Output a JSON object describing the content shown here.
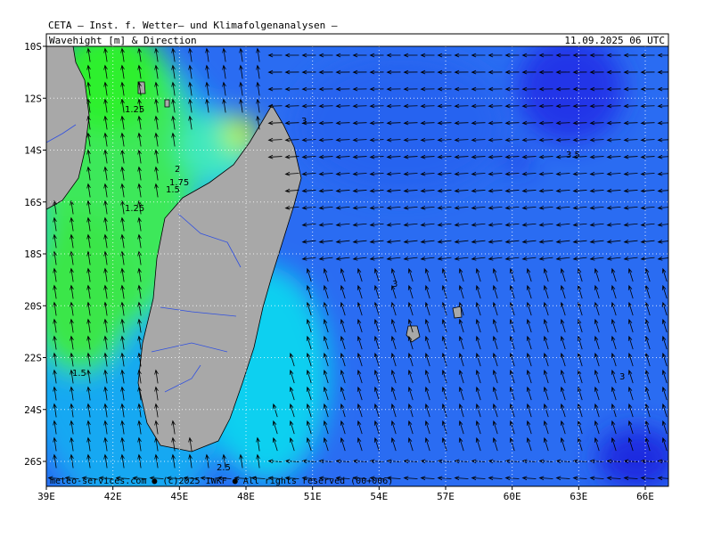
{
  "header": {
    "title": "CETA – Inst. f. Wetter– und Klimafolgenanalysen –",
    "subtitle": "Wavehight [m] & Direction",
    "valid_time": "11.09.2025 06 UTC"
  },
  "map": {
    "lon_ticks": [
      {
        "value": 39,
        "label": "39E"
      },
      {
        "value": 42,
        "label": "42E"
      },
      {
        "value": 45,
        "label": "45E"
      },
      {
        "value": 48,
        "label": "48E"
      },
      {
        "value": 51,
        "label": "51E"
      },
      {
        "value": 54,
        "label": "54E"
      },
      {
        "value": 57,
        "label": "57E"
      },
      {
        "value": 60,
        "label": "60E"
      },
      {
        "value": 63,
        "label": "63E"
      },
      {
        "value": 66,
        "label": "66E"
      }
    ],
    "lat_ticks": [
      {
        "value": -10,
        "label": "10S"
      },
      {
        "value": -12,
        "label": "12S"
      },
      {
        "value": -14,
        "label": "14S"
      },
      {
        "value": -16,
        "label": "16S"
      },
      {
        "value": -18,
        "label": "18S"
      },
      {
        "value": -20,
        "label": "20S"
      },
      {
        "value": -22,
        "label": "22S"
      },
      {
        "value": -24,
        "label": "24S"
      },
      {
        "value": -26,
        "label": "26S"
      }
    ],
    "contour_labels": [
      "3",
      "1.25",
      "2",
      "1.75",
      "1.5",
      "1.25",
      "3.5",
      "3",
      "1.5",
      "3",
      "2.5"
    ]
  },
  "footer": "meteo-services.com ● (c)2025 IWKF ● All rights reserved (00+006)"
}
